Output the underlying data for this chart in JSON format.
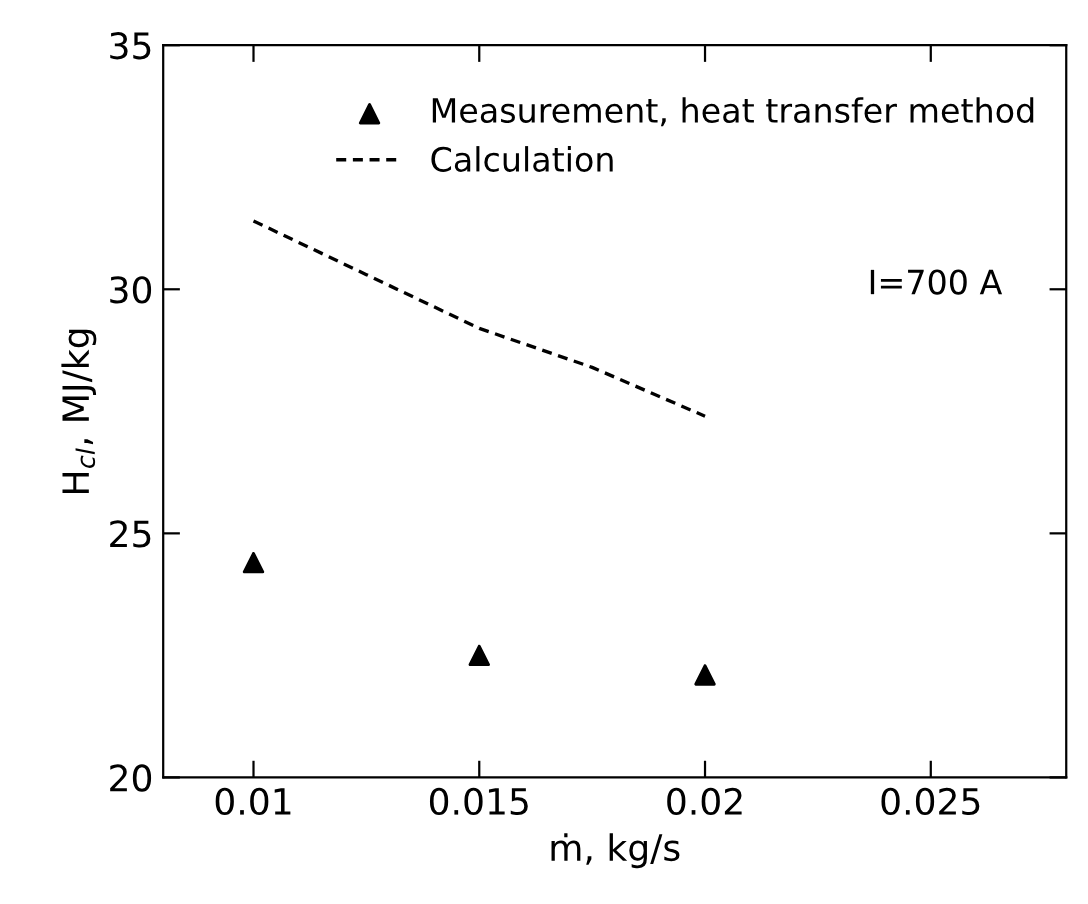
{
  "chart_data": {
    "type": "scatter",
    "xlabel": "ṁ, kg/s",
    "ylabel": "H$_{cl}$, MJ/kg",
    "series": [
      {
        "name": "Measurement, heat transfer method",
        "color": "#000000",
        "marker": "triangle",
        "x": [
          0.01,
          0.015,
          0.02
        ],
        "values": [
          24.4,
          22.5,
          22.1
        ]
      },
      {
        "name": "Calculation",
        "type": "line",
        "color": "#000000",
        "line_style": "dashed",
        "x": [
          0.01,
          0.0125,
          0.015,
          0.0175,
          0.02
        ],
        "values": [
          31.4,
          30.3,
          29.2,
          28.4,
          27.4
        ]
      }
    ],
    "xlim": [
      0.008,
      0.028
    ],
    "xticks": [
      0.01,
      0.015,
      0.02,
      0.025
    ],
    "ylim": [
      20,
      35
    ],
    "yticks": [
      20,
      25,
      30,
      35
    ],
    "grid": false,
    "legend": "top right",
    "annotations": [
      "I=700 A"
    ]
  }
}
